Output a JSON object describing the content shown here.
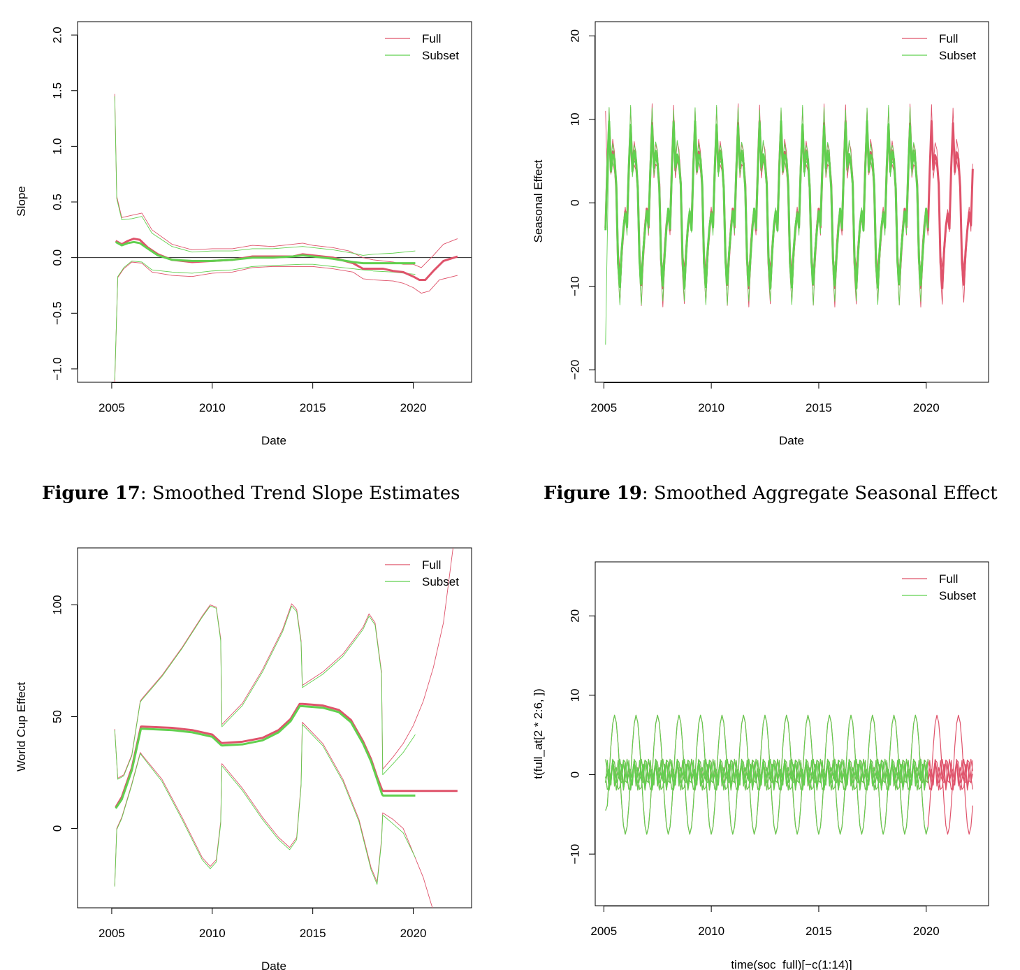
{
  "captions": [
    {
      "label": "Figure 17",
      "text": ": Smoothed Trend Slope Estimates"
    },
    {
      "label": "Figure 19",
      "text": ": Smoothed Aggregate Seasonal Effect"
    }
  ],
  "colors": {
    "full": "#DF536B",
    "subset": "#61D04F"
  },
  "chart_data": [
    {
      "type": "line",
      "xlabel": "Date",
      "ylabel": "Slope",
      "xlim": [
        2003.3,
        2022.9
      ],
      "ylim": [
        -1.12,
        2.12
      ],
      "xticks": [
        2005,
        2010,
        2015,
        2020
      ],
      "yticks": [
        -1.0,
        -0.5,
        0.0,
        0.5,
        1.0,
        1.5,
        2.0
      ],
      "ytick_labels": [
        "−1.0",
        "−0.5",
        "0.0",
        "0.5",
        "1.0",
        "1.5",
        "2.0"
      ],
      "hline": 0,
      "legend": {
        "position": "top-right",
        "entries": [
          "Full",
          "Subset"
        ]
      },
      "series": [
        {
          "name": "Full",
          "role": "mean",
          "x": [
            2005.2,
            2005.5,
            2005.8,
            2006.1,
            2006.4,
            2006.8,
            2007.3,
            2008,
            2009,
            2010,
            2011,
            2012,
            2013,
            2014,
            2014.5,
            2015,
            2016,
            2017,
            2017.5,
            2018,
            2018.5,
            2019,
            2019.5,
            2020,
            2020.3,
            2020.6,
            2021,
            2021.5,
            2022.2
          ],
          "y": [
            0.15,
            0.12,
            0.15,
            0.17,
            0.16,
            0.09,
            0.03,
            -0.02,
            -0.04,
            -0.03,
            -0.02,
            0.01,
            0.01,
            0.01,
            0.03,
            0.02,
            0.0,
            -0.05,
            -0.1,
            -0.1,
            -0.1,
            -0.12,
            -0.13,
            -0.17,
            -0.2,
            -0.2,
            -0.12,
            -0.03,
            0.01
          ]
        },
        {
          "name": "Full",
          "role": "upper",
          "x": [
            2005.15,
            2005.25,
            2005.5,
            2006,
            2006.5,
            2007,
            2008,
            2009,
            2010,
            2011,
            2012,
            2013,
            2014.5,
            2015,
            2016,
            2016.8,
            2017.5,
            2018,
            2019,
            2019.5,
            2020,
            2020.4,
            2021,
            2021.5,
            2022.2
          ],
          "y": [
            1.47,
            0.55,
            0.36,
            0.38,
            0.4,
            0.25,
            0.12,
            0.07,
            0.08,
            0.08,
            0.11,
            0.1,
            0.13,
            0.11,
            0.09,
            0.06,
            0.0,
            -0.02,
            -0.04,
            -0.06,
            -0.06,
            -0.09,
            0.02,
            0.12,
            0.17
          ]
        },
        {
          "name": "Full",
          "role": "lower",
          "x": [
            2005.15,
            2005.3,
            2005.6,
            2006,
            2006.5,
            2007,
            2008,
            2009,
            2010,
            2011,
            2012,
            2013,
            2014.5,
            2015,
            2016,
            2017,
            2017.5,
            2018,
            2019,
            2019.5,
            2020,
            2020.4,
            2020.8,
            2021.3,
            2022.2
          ],
          "y": [
            -1.12,
            -0.18,
            -0.1,
            -0.04,
            -0.05,
            -0.13,
            -0.16,
            -0.17,
            -0.14,
            -0.13,
            -0.09,
            -0.08,
            -0.08,
            -0.08,
            -0.1,
            -0.13,
            -0.19,
            -0.2,
            -0.21,
            -0.23,
            -0.27,
            -0.32,
            -0.3,
            -0.2,
            -0.16
          ]
        },
        {
          "name": "Subset",
          "role": "mean",
          "x": [
            2005.2,
            2005.5,
            2005.8,
            2006.1,
            2006.4,
            2006.8,
            2007.3,
            2008,
            2009,
            2010,
            2011,
            2012,
            2013,
            2014,
            2014.5,
            2015,
            2016,
            2017,
            2017.5,
            2018,
            2019,
            2020.1
          ],
          "y": [
            0.14,
            0.11,
            0.13,
            0.14,
            0.13,
            0.08,
            0.02,
            -0.02,
            -0.03,
            -0.03,
            -0.02,
            0.0,
            0.0,
            0.01,
            0.02,
            0.01,
            -0.01,
            -0.04,
            -0.05,
            -0.05,
            -0.05,
            -0.05
          ]
        },
        {
          "name": "Subset",
          "role": "upper",
          "x": [
            2005.15,
            2005.25,
            2005.5,
            2006,
            2006.5,
            2007,
            2008,
            2009,
            2010,
            2011,
            2012,
            2013,
            2014.5,
            2015,
            2016,
            2017,
            2017.5,
            2018,
            2019,
            2020.1
          ],
          "y": [
            1.45,
            0.53,
            0.34,
            0.35,
            0.37,
            0.22,
            0.1,
            0.05,
            0.06,
            0.06,
            0.08,
            0.08,
            0.1,
            0.09,
            0.07,
            0.04,
            0.02,
            0.03,
            0.04,
            0.06
          ]
        },
        {
          "name": "Subset",
          "role": "lower",
          "x": [
            2005.15,
            2005.3,
            2005.6,
            2006,
            2006.5,
            2007,
            2008,
            2009,
            2010,
            2011,
            2012,
            2013,
            2014.5,
            2015,
            2016,
            2017,
            2018,
            2019,
            2020.1
          ],
          "y": [
            -1.1,
            -0.17,
            -0.09,
            -0.03,
            -0.04,
            -0.11,
            -0.13,
            -0.14,
            -0.12,
            -0.11,
            -0.08,
            -0.07,
            -0.06,
            -0.06,
            -0.08,
            -0.1,
            -0.12,
            -0.13,
            -0.15
          ]
        }
      ]
    },
    {
      "type": "line",
      "xlabel": "Date",
      "ylabel": "Seasonal Effect",
      "xlim": [
        2004.6,
        2022.9
      ],
      "ylim": [
        -21.5,
        21.7
      ],
      "xticks": [
        2005,
        2010,
        2015,
        2020
      ],
      "yticks": [
        -20,
        -10,
        0,
        10,
        20
      ],
      "ytick_labels": [
        "−20",
        "−10",
        "0",
        "10",
        "20"
      ],
      "legend": {
        "position": "top-right",
        "entries": [
          "Full",
          "Subset"
        ]
      },
      "seasonal_pattern": {
        "period": 1,
        "start": 2005.08,
        "mean": [
          -3,
          4,
          9.5,
          4,
          6,
          5,
          2,
          -7,
          -10,
          -6,
          -3,
          -1
        ],
        "band_width": 1.8
      },
      "series": [
        {
          "name": "Full",
          "x_range": [
            2005.08,
            2022.17
          ],
          "role": "mean and bands"
        },
        {
          "name": "Subset",
          "x_range": [
            2005.08,
            2020.08
          ],
          "role": "mean and bands"
        }
      ]
    },
    {
      "type": "line",
      "xlabel": "Date",
      "ylabel": "World Cup Effect",
      "xlim": [
        2003.3,
        2022.9
      ],
      "ylim": [
        -35.5,
        125.5
      ],
      "xticks": [
        2005,
        2010,
        2015,
        2020
      ],
      "yticks": [
        0,
        50,
        100
      ],
      "ytick_labels": [
        "0",
        "50",
        "100"
      ],
      "legend": {
        "position": "top-right",
        "entries": [
          "Full",
          "Subset"
        ]
      },
      "series": [
        {
          "name": "Full",
          "role": "mean",
          "x": [
            2005.2,
            2005.5,
            2006,
            2006.45,
            2006.5,
            2008,
            2009,
            2010.0,
            2010.45,
            2010.5,
            2011.5,
            2012.5,
            2013.3,
            2013.9,
            2014.35,
            2014.5,
            2015.5,
            2016.3,
            2016.9,
            2017.5,
            2017.9,
            2018.2,
            2018.45,
            2018.5,
            2022.2
          ],
          "y": [
            9.5,
            14,
            27,
            45.5,
            45.6,
            45,
            44,
            42,
            38.3,
            38.2,
            38.8,
            40.5,
            44,
            49,
            55.7,
            55.7,
            55,
            53,
            48.5,
            39,
            31,
            23,
            17.2,
            16.8,
            16.8
          ]
        },
        {
          "name": "Full",
          "role": "upper",
          "x": [
            2005.15,
            2005.3,
            2005.6,
            2006,
            2006.42,
            2006.5,
            2007.5,
            2008.5,
            2009.5,
            2009.9,
            2010.2,
            2010.42,
            2010.48,
            2011.5,
            2012.5,
            2013.5,
            2013.95,
            2014.2,
            2014.42,
            2014.48,
            2015.5,
            2016.5,
            2017.5,
            2017.8,
            2018.1,
            2018.42,
            2018.48,
            2019,
            2019.5,
            2020,
            2020.5,
            2021,
            2021.5,
            2022.0
          ],
          "y": [
            44.5,
            22.5,
            24,
            33,
            57,
            58,
            68.5,
            81,
            95,
            100,
            99,
            85,
            46.5,
            56,
            71,
            89,
            100.5,
            98,
            84,
            64,
            70,
            78,
            90,
            96,
            92,
            70,
            26.5,
            32,
            38,
            46,
            57,
            72,
            92,
            127
          ]
        },
        {
          "name": "Full",
          "role": "lower",
          "x": [
            2005.15,
            2005.25,
            2005.5,
            2006,
            2006.42,
            2006.5,
            2007.5,
            2008.5,
            2009.5,
            2009.9,
            2010.2,
            2010.42,
            2010.48,
            2011.5,
            2012.5,
            2013.3,
            2013.85,
            2014.2,
            2014.42,
            2014.48,
            2015.5,
            2016.5,
            2017.3,
            2017.9,
            2018.2,
            2018.42,
            2018.48,
            2019,
            2019.5,
            2020,
            2020.5,
            2021.0
          ],
          "y": [
            -25.5,
            0,
            5,
            20,
            34,
            33,
            22,
            5,
            -13,
            -17,
            -14,
            3,
            29,
            18,
            5,
            -4,
            -8.5,
            -4,
            20,
            47.5,
            38,
            22,
            4,
            -17.5,
            -24,
            -5,
            7,
            4,
            0,
            -11,
            -22,
            -37
          ]
        },
        {
          "name": "Subset",
          "role": "mean",
          "x": [
            2005.2,
            2005.5,
            2006,
            2006.45,
            2006.5,
            2008,
            2009,
            2010.0,
            2010.45,
            2010.5,
            2011.5,
            2012.5,
            2013.3,
            2013.9,
            2014.35,
            2014.5,
            2015.5,
            2016.3,
            2016.9,
            2017.5,
            2017.9,
            2018.2,
            2018.45,
            2018.5,
            2020.1
          ],
          "y": [
            9,
            13,
            26,
            44.5,
            44.6,
            44,
            43,
            41,
            37.2,
            37.1,
            37.6,
            39.4,
            43,
            48,
            54.7,
            54.7,
            54,
            52,
            47.5,
            38,
            30,
            22,
            15.2,
            14.7,
            14.7
          ]
        },
        {
          "name": "Subset",
          "role": "upper",
          "x": [
            2005.15,
            2005.3,
            2005.6,
            2006,
            2006.42,
            2006.5,
            2007.5,
            2008.5,
            2009.5,
            2009.9,
            2010.2,
            2010.42,
            2010.48,
            2011.5,
            2012.5,
            2013.5,
            2013.95,
            2014.2,
            2014.42,
            2014.48,
            2015.5,
            2016.5,
            2017.5,
            2017.8,
            2018.1,
            2018.42,
            2018.48,
            2019,
            2019.5,
            2020.1
          ],
          "y": [
            44,
            22,
            23.5,
            32.5,
            56.5,
            57.5,
            68,
            80.5,
            94.5,
            99.5,
            98.5,
            84,
            45.5,
            55,
            70,
            88,
            99.5,
            97,
            83,
            63,
            69,
            77,
            89,
            95,
            91,
            69,
            24,
            29,
            34,
            42
          ]
        },
        {
          "name": "Subset",
          "role": "lower",
          "x": [
            2005.15,
            2005.25,
            2005.5,
            2006,
            2006.42,
            2006.5,
            2007.5,
            2008.5,
            2009.5,
            2009.9,
            2010.2,
            2010.42,
            2010.48,
            2011.5,
            2012.5,
            2013.3,
            2013.85,
            2014.2,
            2014.42,
            2014.48,
            2015.5,
            2016.5,
            2017.3,
            2017.9,
            2018.2,
            2018.42,
            2018.48,
            2019,
            2019.5,
            2020.1
          ],
          "y": [
            -26,
            -0.5,
            4.5,
            19.5,
            33.5,
            32.5,
            21,
            4,
            -14,
            -18,
            -15,
            2,
            28,
            17,
            4,
            -5,
            -9.5,
            -5,
            19,
            46.5,
            37,
            21,
            3,
            -18.5,
            -25,
            -6,
            6,
            2,
            -2,
            -13
          ]
        }
      ]
    },
    {
      "type": "line",
      "xlabel": "time(soc_full)[−c(1:14)]",
      "ylabel": "t(full_at[2 * 2:6, ])",
      "xlim": [
        2004.6,
        2022.9
      ],
      "ylim": [
        -16.5,
        26.8
      ],
      "xticks": [
        2005,
        2010,
        2015,
        2020
      ],
      "yticks": [
        -10,
        0,
        10,
        20
      ],
      "ytick_labels": [
        "−10",
        "0",
        "10",
        "20"
      ],
      "legend": {
        "position": "top-right",
        "entries": [
          "Full",
          "Subset"
        ]
      },
      "harmonics": {
        "amplitudes": [
          7.5,
          2,
          2,
          1.8,
          1.6
        ],
        "frequencies": [
          1,
          2,
          3,
          4,
          5
        ]
      },
      "series": [
        {
          "name": "Full",
          "x_range": [
            2005.08,
            2022.17
          ],
          "role": "harmonic components"
        },
        {
          "name": "Subset",
          "x_range": [
            2005.08,
            2020.08
          ],
          "role": "harmonic components"
        }
      ]
    }
  ]
}
